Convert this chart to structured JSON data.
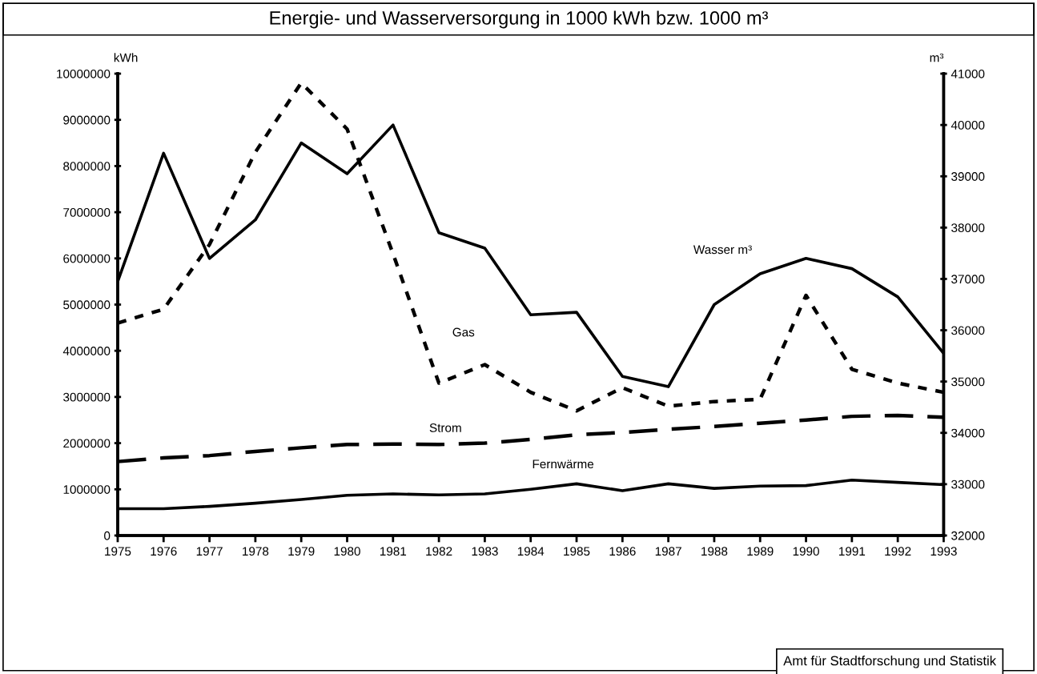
{
  "chart_data": {
    "type": "line",
    "title": "Energie- und Wasserversorgung in 1000 kWh bzw. 1000 m³",
    "x": [
      1975,
      1976,
      1977,
      1978,
      1979,
      1980,
      1981,
      1982,
      1983,
      1984,
      1985,
      1986,
      1987,
      1988,
      1989,
      1990,
      1991,
      1992,
      1993
    ],
    "ylabel": "kWh",
    "y2label": "m³",
    "series": [
      {
        "name": "Wasser m³",
        "color": "#000000",
        "axis": "y2",
        "line_style": "solid",
        "values": [
          36950,
          39450,
          37400,
          38150,
          39650,
          39050,
          40000,
          37900,
          37600,
          36300,
          36350,
          35100,
          34900,
          36500,
          37100,
          37400,
          37200,
          36650,
          35550
        ]
      },
      {
        "name": "Gas",
        "color": "#000000",
        "line_style": "dotted",
        "values": [
          4600000,
          4900000,
          6300000,
          8300000,
          9800000,
          8800000,
          6100000,
          3300000,
          3700000,
          3100000,
          2700000,
          3200000,
          2800000,
          2900000,
          2950000,
          5200000,
          3600000,
          3300000,
          3100000
        ]
      },
      {
        "name": "Strom",
        "color": "#000000",
        "line_style": "dashed",
        "values": [
          1600000,
          1680000,
          1730000,
          1820000,
          1900000,
          1970000,
          1980000,
          1970000,
          2000000,
          2080000,
          2180000,
          2230000,
          2300000,
          2360000,
          2430000,
          2500000,
          2580000,
          2600000,
          2560000
        ]
      },
      {
        "name": "Fernwärme",
        "color": "#000000",
        "line_style": "solid",
        "values": [
          580000,
          580000,
          630000,
          700000,
          780000,
          870000,
          900000,
          880000,
          900000,
          1000000,
          1120000,
          970000,
          1120000,
          1020000,
          1070000,
          1080000,
          1200000,
          1150000,
          1100000
        ]
      }
    ],
    "xlim": [
      1975,
      1993
    ],
    "xticks": [
      1975,
      1976,
      1977,
      1978,
      1979,
      1980,
      1981,
      1982,
      1983,
      1984,
      1985,
      1986,
      1987,
      1988,
      1989,
      1990,
      1991,
      1992,
      1993
    ],
    "ylim": [
      0,
      10000000
    ],
    "yticks": [
      0,
      1000000,
      2000000,
      3000000,
      4000000,
      5000000,
      6000000,
      7000000,
      8000000,
      9000000,
      10000000
    ],
    "y2lim": [
      32000,
      41000
    ],
    "y2ticks": [
      32000,
      33000,
      34000,
      35000,
      36000,
      37000,
      38000,
      39000,
      40000,
      41000
    ],
    "grid": false,
    "legend": false,
    "marker": "none",
    "annotations": [
      "Amt für Stadtforschung und Statistik"
    ]
  }
}
